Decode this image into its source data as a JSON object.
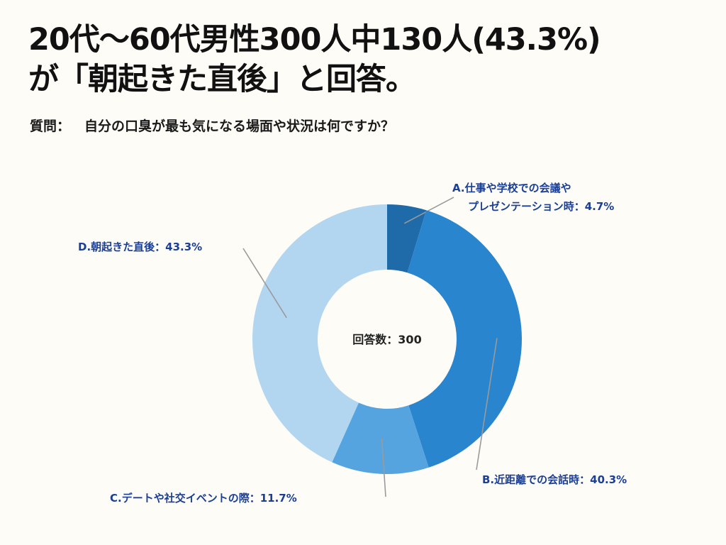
{
  "header": {
    "title_line1": "20代〜60代男性300人中130人(43.3%)",
    "title_line2": "が「朝起きた直後」と回答。"
  },
  "question": {
    "label": "質問：",
    "text": "自分の口臭が最も気になる場面や状況は何ですか？"
  },
  "chart_data": {
    "type": "pie",
    "variant": "donut",
    "center_text": "回答数：300",
    "total": 300,
    "categories": [
      "A.仕事や学校での会議やプレゼンテーション時",
      "B.近距離での会話時",
      "C.デートや社交イベントの際",
      "D.朝起きた直後"
    ],
    "values": [
      4.7,
      40.3,
      11.7,
      43.3
    ],
    "unit": "%",
    "labels": [
      {
        "lines": [
          "A.仕事や学校での会議や",
          "プレゼンテーション時：4.7%"
        ]
      },
      {
        "lines": [
          "B.近距離での会話時：40.3%"
        ]
      },
      {
        "lines": [
          "C.デートや社交イベントの際：11.7%"
        ]
      },
      {
        "lines": [
          "D.朝起きた直後：43.3%"
        ]
      }
    ],
    "colors": [
      "#1f6aa8",
      "#2985cd",
      "#55a4e0",
      "#b2d6f0"
    ],
    "label_color": "#1b3f95",
    "leader_color": "#9a9a9a"
  }
}
